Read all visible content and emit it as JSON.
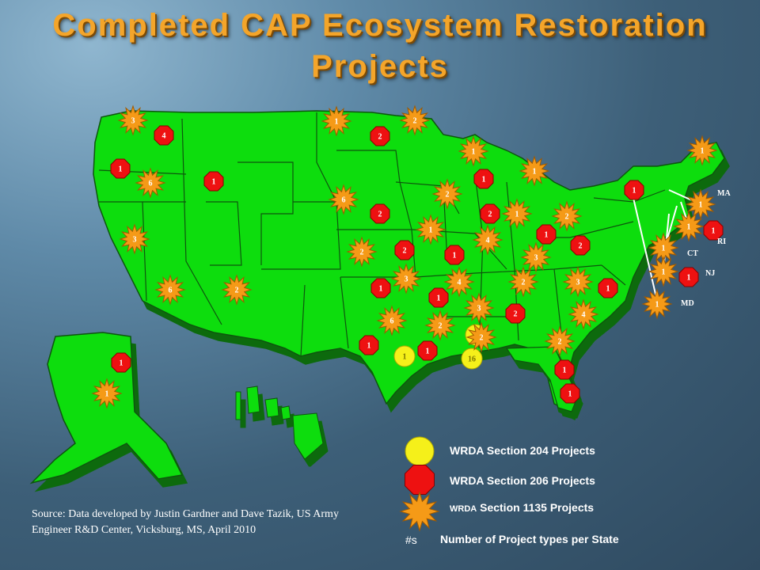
{
  "title_line1": "Completed CAP Ecosystem Restoration",
  "title_line2": "Projects",
  "colors": {
    "map_fill": "#11dd11",
    "s204": "#f5f01a",
    "s206": "#ee1111",
    "s1135": "#f59a17"
  },
  "state_labels": [
    "MA",
    "RI",
    "CT",
    "NJ",
    "MD"
  ],
  "markers": [
    {
      "type": "s1135",
      "label": "3"
    },
    {
      "type": "s206",
      "label": "4"
    },
    {
      "type": "s206",
      "label": "1"
    },
    {
      "type": "s1135",
      "label": "6"
    },
    {
      "type": "s206",
      "label": "1"
    },
    {
      "type": "s1135",
      "label": "3"
    },
    {
      "type": "s1135",
      "label": "6"
    },
    {
      "type": "s1135",
      "label": "2"
    },
    {
      "type": "s206",
      "label": "1"
    },
    {
      "type": "s1135",
      "label": "1"
    },
    {
      "type": "s1135",
      "label": "1"
    },
    {
      "type": "s206",
      "label": "2"
    },
    {
      "type": "s1135",
      "label": "2"
    },
    {
      "type": "s1135",
      "label": "6"
    },
    {
      "type": "s206",
      "label": "2"
    },
    {
      "type": "s1135",
      "label": "2"
    },
    {
      "type": "s206",
      "label": "2"
    },
    {
      "type": "s1135",
      "label": "3"
    },
    {
      "type": "s206",
      "label": "1"
    },
    {
      "type": "s1135",
      "label": "6"
    },
    {
      "type": "s206",
      "label": "1"
    },
    {
      "type": "s204",
      "label": "1"
    },
    {
      "type": "s1135",
      "label": "1"
    },
    {
      "type": "s206",
      "label": "1"
    },
    {
      "type": "s1135",
      "label": "2"
    },
    {
      "type": "s1135",
      "label": "1"
    },
    {
      "type": "s1135",
      "label": "1"
    },
    {
      "type": "s206",
      "label": "1"
    },
    {
      "type": "s206",
      "label": "1"
    },
    {
      "type": "s206",
      "label": "2"
    },
    {
      "type": "s1135",
      "label": "1"
    },
    {
      "type": "s1135",
      "label": "4"
    },
    {
      "type": "s1135",
      "label": "4"
    },
    {
      "type": "s206",
      "label": "1"
    },
    {
      "type": "s1135",
      "label": "3"
    },
    {
      "type": "s1135",
      "label": "2"
    },
    {
      "type": "s206",
      "label": "2"
    },
    {
      "type": "s1135",
      "label": "3"
    },
    {
      "type": "s204",
      "label": "1"
    },
    {
      "type": "s204",
      "label": "16"
    },
    {
      "type": "s206",
      "label": "1"
    },
    {
      "type": "s1135",
      "label": "2"
    },
    {
      "type": "s206",
      "label": "1"
    },
    {
      "type": "s1135",
      "label": "2"
    },
    {
      "type": "s206",
      "label": "1"
    },
    {
      "type": "s1135",
      "label": "1"
    },
    {
      "type": "s1135",
      "label": "1"
    },
    {
      "type": "s206",
      "label": "1"
    },
    {
      "type": "s1135",
      "label": "1"
    },
    {
      "type": "s1135",
      "label": "4"
    },
    {
      "type": "s1135",
      "label": "2"
    },
    {
      "type": "s206",
      "label": "2"
    },
    {
      "type": "s1135",
      "label": "3"
    },
    {
      "type": "s206",
      "label": "1"
    },
    {
      "type": "s1135",
      "label": "1"
    },
    {
      "type": "s1135",
      "label": "2"
    },
    {
      "type": "s206",
      "label": "1"
    },
    {
      "type": "s1135",
      "label": "1"
    },
    {
      "type": "s1135",
      "label": "1"
    },
    {
      "type": "s206",
      "label": "1"
    },
    {
      "type": "s1135",
      "label": "1"
    }
  ],
  "legend": {
    "s204_label": "WRDA Section 204 Projects",
    "s206_label": "WRDA Section 206 Projects",
    "s1135_prefix": "WRDA",
    "s1135_label": "Section 1135 Projects",
    "count_symbol": "#s",
    "count_label": "Number of Project types per State"
  },
  "source": "Source: Data developed by Justin Gardner and Dave Tazik, US Army Engineer R&D Center, Vicksburg, MS, April 2010"
}
